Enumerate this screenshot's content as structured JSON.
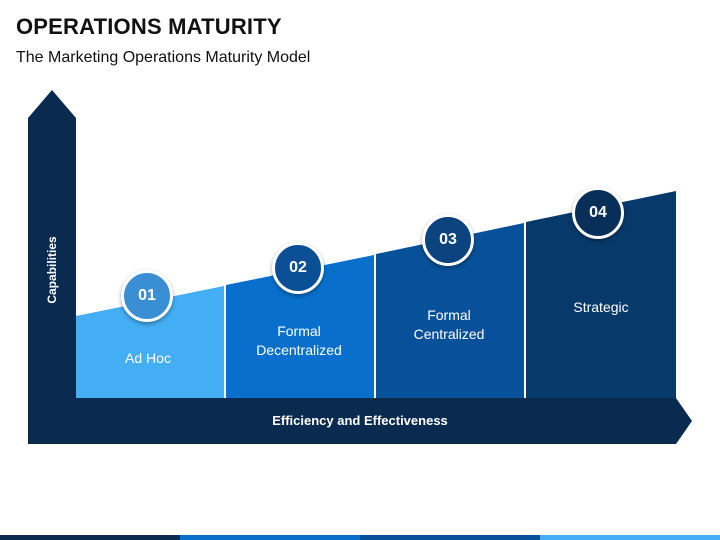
{
  "header": {
    "title": "OPERATIONS MATURITY",
    "subtitle": "The Marketing Operations Maturity Model"
  },
  "axes": {
    "y_label": "Capabilities",
    "x_label": "Efficiency and Effectiveness"
  },
  "stages": [
    {
      "number": "01",
      "label_line1": "Ad Hoc",
      "label_line2": ""
    },
    {
      "number": "02",
      "label_line1": "Formal",
      "label_line2": "Decentralized"
    },
    {
      "number": "03",
      "label_line1": "Formal",
      "label_line2": "Centralized"
    },
    {
      "number": "04",
      "label_line1": "Strategic",
      "label_line2": ""
    }
  ],
  "colors": {
    "axis": "#0b2a4f",
    "stage1": "#44aef5",
    "stage2": "#0870cc",
    "stage3": "#06519a",
    "stage4": "#073a6b",
    "badge1": "#3a8fd4",
    "badge2": "#0a4f96",
    "badge3": "#0b437f",
    "badge4": "#082f57"
  }
}
